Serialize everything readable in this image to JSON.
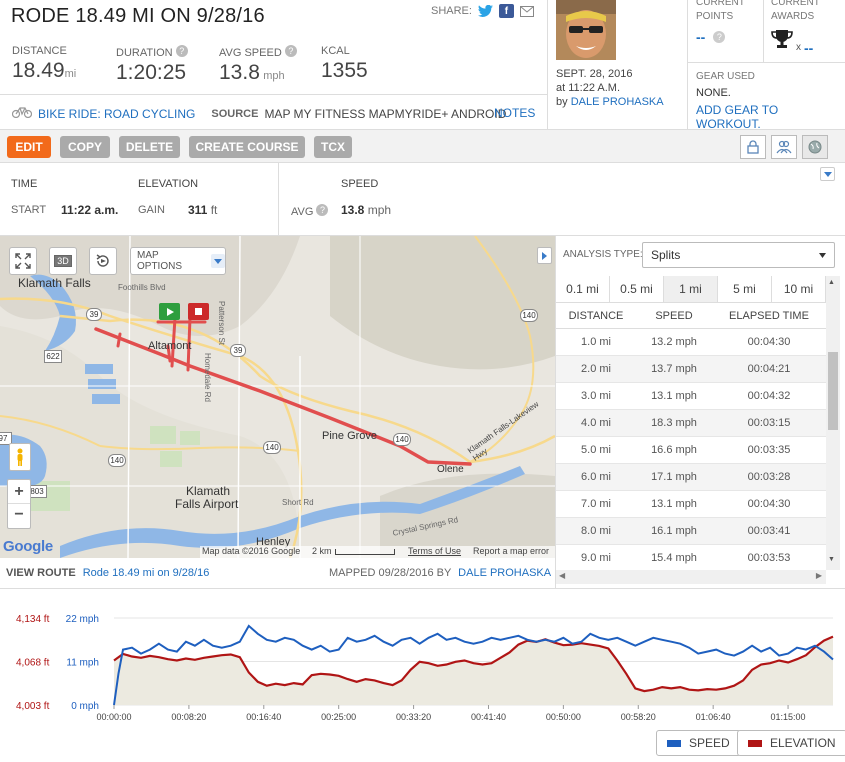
{
  "header": {
    "title": "RODE 18.49 MI ON 9/28/16",
    "share_label": "SHARE:"
  },
  "stats": [
    {
      "label": "DISTANCE",
      "value": "18.49",
      "unit": "mi",
      "help": false
    },
    {
      "label": "DURATION",
      "value": "1:20:25",
      "unit": "",
      "help": true
    },
    {
      "label": "AVG SPEED",
      "value": "13.8",
      "unit": "mph",
      "help": true
    },
    {
      "label": "KCAL",
      "value": "1355",
      "unit": "",
      "help": false
    }
  ],
  "meta": {
    "activity": "BIKE RIDE: ROAD CYCLING",
    "source_label": "SOURCE",
    "source_value": "MAP MY FITNESS MAPMYRIDE+ ANDROID",
    "notes_label": "NOTES"
  },
  "author": {
    "date": "SEPT. 28, 2016",
    "time": "at 11:22 A.M.",
    "by": "by",
    "name": "DALE PROHASKA"
  },
  "rewards": {
    "points_label1": "CURRENT",
    "points_label2": "POINTS",
    "points_value": "--",
    "awards_label1": "CURRENT",
    "awards_label2": "AWARDS",
    "awards_x": "x",
    "awards_value": "--"
  },
  "gear": {
    "label": "GEAR USED",
    "value": "NONE.",
    "add_link": "ADD GEAR TO WORKOUT."
  },
  "buttons": {
    "edit": "EDIT",
    "copy": "COPY",
    "delete": "DELETE",
    "create_course": "CREATE COURSE",
    "tcx": "TCX"
  },
  "summary": {
    "time_label": "TIME",
    "start_label": "START",
    "start_value": "11:22 a.m.",
    "elevation_label": "ELEVATION",
    "gain_label": "GAIN",
    "gain_value": "311",
    "gain_unit": "ft",
    "speed_label": "SPEED",
    "avg_label": "AVG",
    "avg_value": "13.8",
    "avg_unit": "mph"
  },
  "map": {
    "options_label": "MAP OPTIONS",
    "btn_3d": "3D",
    "zoom_in": "+",
    "zoom_out": "−",
    "attribution": "Map data ©2016 Google",
    "scale": "2 km",
    "terms": "Terms of Use",
    "report": "Report a map error",
    "google": "Google",
    "places": [
      {
        "name": "Klamath Falls"
      },
      {
        "name": "Altamont"
      },
      {
        "name": "Pine Grove"
      },
      {
        "name": "Olene"
      },
      {
        "name": "Klamath"
      },
      {
        "name": "Falls Airport"
      },
      {
        "name": "Henley"
      },
      {
        "name": "Foothills Blvd"
      },
      {
        "name": "Patterson St"
      },
      {
        "name": "Homedale Rd"
      },
      {
        "name": "Short Rd"
      },
      {
        "name": "Crystal Springs Rd"
      },
      {
        "name": "Klamath Falls-Lakeview Hwy"
      }
    ],
    "shields": [
      "39",
      "140",
      "39",
      "140",
      "140",
      "140",
      "622",
      "97",
      "803"
    ]
  },
  "route_footer": {
    "view_route": "VIEW ROUTE",
    "route_link": "Rode 18.49 mi on 9/28/16",
    "mapped": "MAPPED 09/28/2016 BY",
    "mapped_by": "DALE PROHASKA"
  },
  "analysis": {
    "type_label": "ANALYSIS TYPE:",
    "type_value": "Splits",
    "tabs": [
      "0.1 mi",
      "0.5 mi",
      "1 mi",
      "5 mi",
      "10 mi"
    ],
    "active_tab": 2,
    "columns": [
      "DISTANCE",
      "SPEED",
      "ELAPSED TIME"
    ],
    "rows": [
      [
        "1.0 mi",
        "13.2 mph",
        "00:04:30"
      ],
      [
        "2.0 mi",
        "13.7 mph",
        "00:04:21"
      ],
      [
        "3.0 mi",
        "13.1 mph",
        "00:04:32"
      ],
      [
        "4.0 mi",
        "18.3 mph",
        "00:03:15"
      ],
      [
        "5.0 mi",
        "16.6 mph",
        "00:03:35"
      ],
      [
        "6.0 mi",
        "17.1 mph",
        "00:03:28"
      ],
      [
        "7.0 mi",
        "13.1 mph",
        "00:04:30"
      ],
      [
        "8.0 mi",
        "16.1 mph",
        "00:03:41"
      ],
      [
        "9.0 mi",
        "15.4 mph",
        "00:03:53"
      ]
    ]
  },
  "chart_data": {
    "type": "line",
    "elev_ticks": [
      "4,134 ft",
      "4,068 ft",
      "4,003 ft"
    ],
    "speed_ticks": [
      "22 mph",
      "11 mph",
      "0 mph"
    ],
    "x_ticks": [
      "00:00:00",
      "00:08:20",
      "00:16:40",
      "00:25:00",
      "00:33:20",
      "00:41:40",
      "00:50:00",
      "00:58:20",
      "01:06:40",
      "01:15:00"
    ],
    "elevation_range_ft": [
      4003,
      4134
    ],
    "speed_range_mph": [
      0,
      22
    ],
    "series": [
      {
        "name": "SPEED",
        "color": "#1e5fbf",
        "t_min": [
          0,
          0.5,
          1,
          2,
          3,
          4,
          5,
          6,
          7,
          8,
          9,
          10,
          11,
          12,
          13,
          14,
          15,
          16,
          17,
          18,
          19,
          20,
          21,
          22,
          23,
          24,
          25,
          26,
          27,
          28,
          29,
          30,
          31,
          32,
          33,
          34,
          35,
          36,
          37,
          38,
          39,
          40,
          41,
          42,
          43,
          44,
          45,
          46,
          47,
          48,
          49,
          50,
          51,
          52,
          53,
          54,
          55,
          56,
          57,
          58,
          59,
          60,
          61,
          62,
          63,
          64,
          65,
          66,
          67,
          68,
          69,
          70,
          71,
          72,
          73,
          74,
          75,
          76,
          77,
          78,
          79,
          80
        ],
        "mph": [
          0,
          8,
          14,
          14.5,
          13,
          14,
          15.5,
          14,
          13.5,
          16,
          15,
          16.5,
          15,
          14.5,
          15,
          16,
          20,
          18,
          16.5,
          16,
          17,
          16.5,
          15,
          14,
          15,
          13.5,
          14,
          17,
          16,
          16.5,
          17.5,
          16,
          15,
          16.5,
          17,
          15.5,
          17,
          18,
          16.5,
          17,
          16,
          15.5,
          16,
          17,
          16.5,
          17,
          17.5,
          16.5,
          16,
          16.5,
          16,
          17,
          15.5,
          16,
          18,
          17,
          16.5,
          17,
          16,
          15,
          16,
          17,
          16.5,
          16,
          15.5,
          14.5,
          13,
          13.5,
          14,
          13,
          12.5,
          13.5,
          15,
          13.5,
          14.5,
          12.5,
          13,
          14.5,
          14,
          15,
          13.5,
          11.5
        ]
      },
      {
        "name": "ELEVATION",
        "color": "#b01515",
        "t_min": [
          0,
          1,
          2,
          3,
          4,
          5,
          6,
          7,
          8,
          9,
          10,
          11,
          12,
          13,
          14,
          15,
          16,
          17,
          18,
          19,
          20,
          21,
          22,
          23,
          24,
          25,
          26,
          27,
          28,
          29,
          30,
          31,
          32,
          33,
          34,
          35,
          36,
          37,
          38,
          39,
          40,
          41,
          42,
          43,
          44,
          45,
          46,
          47,
          48,
          49,
          50,
          51,
          52,
          53,
          54,
          55,
          56,
          57,
          58,
          59,
          60,
          61,
          62,
          63,
          64,
          65,
          66,
          67,
          68,
          69,
          70,
          71,
          72,
          73,
          74,
          75,
          76,
          77,
          78,
          79,
          80
        ],
        "ft": [
          4070,
          4080,
          4076,
          4074,
          4077,
          4075,
          4072,
          4070,
          4073,
          4071,
          4074,
          4076,
          4078,
          4079,
          4075,
          4052,
          4038,
          4032,
          4035,
          4033,
          4036,
          4034,
          4048,
          4050,
          4049,
          4047,
          4042,
          4038,
          4042,
          4040,
          4036,
          4033,
          4040,
          4056,
          4068,
          4066,
          4062,
          4064,
          4068,
          4070,
          4066,
          4064,
          4066,
          4074,
          4082,
          4094,
          4100,
          4098,
          4102,
          4097,
          4093,
          4094,
          4096,
          4094,
          4092,
          4088,
          4070,
          4050,
          4028,
          4024,
          4026,
          4030,
          4028,
          4030,
          4026,
          4025,
          4027,
          4026,
          4028,
          4032,
          4040,
          4056,
          4064,
          4066,
          4070,
          4067,
          4072,
          4078,
          4090,
          4100,
          4106
        ]
      }
    ],
    "legend": [
      "SPEED",
      "ELEVATION"
    ]
  },
  "colors": {
    "accent": "#f26a1b",
    "link": "#1f6fbf",
    "route": "#e14e4e",
    "speed": "#1e5fbf",
    "elevation": "#b01515"
  }
}
